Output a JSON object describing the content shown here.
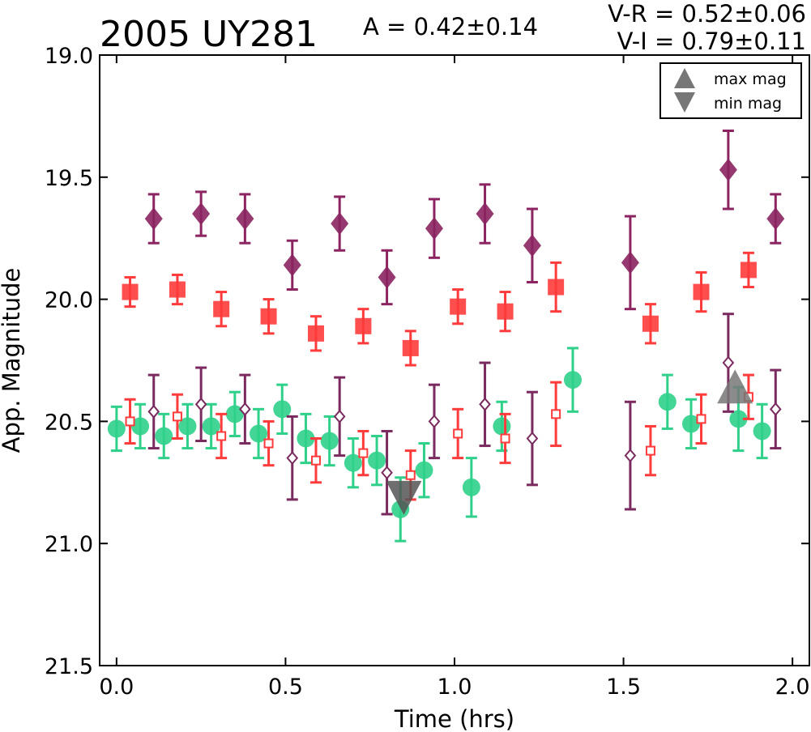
{
  "chart_data": {
    "type": "scatter",
    "title": "2005 UY281",
    "amplitude_text": "A  = 0.42±0.14",
    "color_indices": [
      "V-R = 0.52±0.06",
      "V-I  = 0.79±0.11"
    ],
    "xlabel": "Time (hrs)",
    "ylabel": "App. Magnitude",
    "xlim": [
      -0.05,
      2.05
    ],
    "ylim": [
      21.5,
      19.0
    ],
    "y_inverted": true,
    "xticks": [
      "0.0",
      "0.5",
      "1.0",
      "1.5",
      "2.0"
    ],
    "xtick_values": [
      0.0,
      0.5,
      1.0,
      1.5,
      2.0
    ],
    "yticks": [
      "19.0",
      "19.5",
      "20.0",
      "20.5",
      "21.0",
      "21.5"
    ],
    "ytick_values": [
      19.0,
      19.5,
      20.0,
      20.5,
      21.0,
      21.5
    ],
    "grid": false,
    "legend": {
      "position": "top-right",
      "entries": [
        {
          "label": "max mag",
          "marker": "triangle-up",
          "color": "#777777"
        },
        {
          "label": "min mag",
          "marker": "triangle-down",
          "color": "#777777"
        }
      ]
    },
    "series": [
      {
        "marker": "diamond-filled",
        "color": "#8b2460",
        "points": [
          {
            "x": 0.11,
            "y": 19.67,
            "err": 0.1
          },
          {
            "x": 0.25,
            "y": 19.65,
            "err": 0.09
          },
          {
            "x": 0.38,
            "y": 19.67,
            "err": 0.1
          },
          {
            "x": 0.52,
            "y": 19.86,
            "err": 0.1
          },
          {
            "x": 0.66,
            "y": 19.69,
            "err": 0.11
          },
          {
            "x": 0.8,
            "y": 19.91,
            "err": 0.11
          },
          {
            "x": 0.94,
            "y": 19.71,
            "err": 0.12
          },
          {
            "x": 1.09,
            "y": 19.65,
            "err": 0.12
          },
          {
            "x": 1.23,
            "y": 19.78,
            "err": 0.15
          },
          {
            "x": 1.52,
            "y": 19.85,
            "err": 0.19
          },
          {
            "x": 1.81,
            "y": 19.47,
            "err": 0.16
          },
          {
            "x": 1.95,
            "y": 19.67,
            "err": 0.1
          }
        ]
      },
      {
        "marker": "square-filled",
        "color": "#ff3b3b",
        "points": [
          {
            "x": 0.04,
            "y": 19.97,
            "err": 0.06
          },
          {
            "x": 0.18,
            "y": 19.96,
            "err": 0.06
          },
          {
            "x": 0.31,
            "y": 20.04,
            "err": 0.07
          },
          {
            "x": 0.45,
            "y": 20.07,
            "err": 0.07
          },
          {
            "x": 0.59,
            "y": 20.14,
            "err": 0.07
          },
          {
            "x": 0.73,
            "y": 20.11,
            "err": 0.07
          },
          {
            "x": 0.87,
            "y": 20.2,
            "err": 0.07
          },
          {
            "x": 1.01,
            "y": 20.03,
            "err": 0.07
          },
          {
            "x": 1.15,
            "y": 20.05,
            "err": 0.08
          },
          {
            "x": 1.3,
            "y": 19.95,
            "err": 0.1
          },
          {
            "x": 1.58,
            "y": 20.1,
            "err": 0.08
          },
          {
            "x": 1.73,
            "y": 19.97,
            "err": 0.08
          },
          {
            "x": 1.87,
            "y": 19.88,
            "err": 0.07
          }
        ]
      },
      {
        "marker": "circle-filled",
        "color": "#2fd08a",
        "points": [
          {
            "x": 0.0,
            "y": 20.53,
            "err": 0.09
          },
          {
            "x": 0.07,
            "y": 20.52,
            "err": 0.09
          },
          {
            "x": 0.14,
            "y": 20.56,
            "err": 0.09
          },
          {
            "x": 0.21,
            "y": 20.52,
            "err": 0.09
          },
          {
            "x": 0.28,
            "y": 20.52,
            "err": 0.09
          },
          {
            "x": 0.35,
            "y": 20.47,
            "err": 0.09
          },
          {
            "x": 0.42,
            "y": 20.55,
            "err": 0.1
          },
          {
            "x": 0.49,
            "y": 20.45,
            "err": 0.1
          },
          {
            "x": 0.56,
            "y": 20.57,
            "err": 0.1
          },
          {
            "x": 0.63,
            "y": 20.58,
            "err": 0.1
          },
          {
            "x": 0.7,
            "y": 20.67,
            "err": 0.1
          },
          {
            "x": 0.77,
            "y": 20.66,
            "err": 0.1
          },
          {
            "x": 0.84,
            "y": 20.86,
            "err": 0.13
          },
          {
            "x": 0.91,
            "y": 20.7,
            "err": 0.11
          },
          {
            "x": 1.05,
            "y": 20.77,
            "err": 0.12
          },
          {
            "x": 1.14,
            "y": 20.52,
            "err": 0.1
          },
          {
            "x": 1.35,
            "y": 20.33,
            "err": 0.13
          },
          {
            "x": 1.63,
            "y": 20.42,
            "err": 0.11
          },
          {
            "x": 1.7,
            "y": 20.51,
            "err": 0.1
          },
          {
            "x": 1.84,
            "y": 20.49,
            "err": 0.13
          },
          {
            "x": 1.91,
            "y": 20.54,
            "err": 0.11
          }
        ]
      },
      {
        "marker": "diamond-open",
        "color": "#7a2a5e",
        "points": [
          {
            "x": 0.11,
            "y": 20.46,
            "err": 0.15
          },
          {
            "x": 0.25,
            "y": 20.43,
            "err": 0.15
          },
          {
            "x": 0.38,
            "y": 20.45,
            "err": 0.14
          },
          {
            "x": 0.52,
            "y": 20.65,
            "err": 0.17
          },
          {
            "x": 0.66,
            "y": 20.48,
            "err": 0.16
          },
          {
            "x": 0.8,
            "y": 20.71,
            "err": 0.17
          },
          {
            "x": 0.94,
            "y": 20.5,
            "err": 0.15
          },
          {
            "x": 1.09,
            "y": 20.43,
            "err": 0.17
          },
          {
            "x": 1.23,
            "y": 20.57,
            "err": 0.19
          },
          {
            "x": 1.52,
            "y": 20.64,
            "err": 0.22
          },
          {
            "x": 1.81,
            "y": 20.26,
            "err": 0.2
          },
          {
            "x": 1.95,
            "y": 20.45,
            "err": 0.16
          }
        ]
      },
      {
        "marker": "square-open",
        "color": "#ff3b3b",
        "points": [
          {
            "x": 0.04,
            "y": 20.5,
            "err": 0.09
          },
          {
            "x": 0.18,
            "y": 20.48,
            "err": 0.09
          },
          {
            "x": 0.31,
            "y": 20.56,
            "err": 0.09
          },
          {
            "x": 0.45,
            "y": 20.59,
            "err": 0.09
          },
          {
            "x": 0.59,
            "y": 20.66,
            "err": 0.09
          },
          {
            "x": 0.73,
            "y": 20.63,
            "err": 0.09
          },
          {
            "x": 0.87,
            "y": 20.72,
            "err": 0.1
          },
          {
            "x": 1.01,
            "y": 20.55,
            "err": 0.1
          },
          {
            "x": 1.15,
            "y": 20.57,
            "err": 0.1
          },
          {
            "x": 1.3,
            "y": 20.47,
            "err": 0.13
          },
          {
            "x": 1.58,
            "y": 20.62,
            "err": 0.1
          },
          {
            "x": 1.73,
            "y": 20.49,
            "err": 0.1
          },
          {
            "x": 1.87,
            "y": 20.4,
            "err": 0.09
          }
        ]
      }
    ],
    "extrema": [
      {
        "kind": "max mag",
        "x": 1.83,
        "y": 20.38,
        "color": "#777777"
      },
      {
        "kind": "min mag",
        "x": 0.85,
        "y": 20.79,
        "color": "#555555"
      }
    ]
  }
}
